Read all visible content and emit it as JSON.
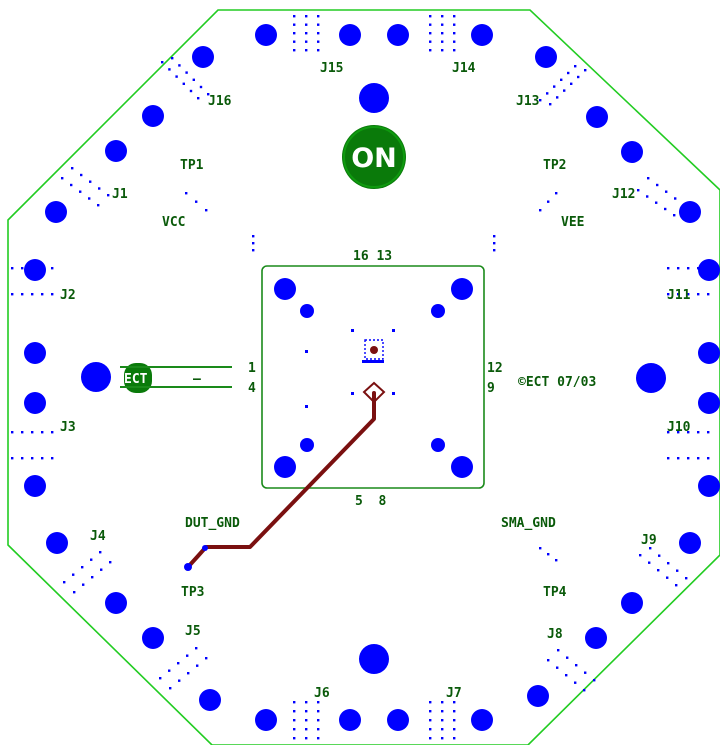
{
  "board": {
    "logo_text": "ON",
    "connectors": {
      "j1": "J1",
      "j2": "J2",
      "j3": "J3",
      "j4": "J4",
      "j5": "J5",
      "j6": "J6",
      "j7": "J7",
      "j8": "J8",
      "j9": "J9",
      "j10": "J10",
      "j11": "J11",
      "j12": "J12",
      "j13": "J13",
      "j14": "J14",
      "j15": "J15",
      "j16": "J16"
    },
    "test_points": {
      "tp1": "TP1",
      "tp2": "TP2",
      "tp3": "TP3",
      "tp4": "TP4"
    },
    "nets": {
      "vcc": "VCC",
      "vee": "VEE",
      "dut_gnd": "DUT_GND",
      "sma_gnd": "SMA_GND"
    },
    "socket_pins": {
      "top": "16 13",
      "bottom": "5  8",
      "left_top": "1",
      "left_bottom": "4",
      "right_top": "12",
      "right_bottom": "9"
    },
    "copyright": "©ECT 07/03",
    "ect_logo": "ECT",
    "dash": "–",
    "colors": {
      "outline": "#22cc22",
      "pad": "#0000ff",
      "trace": "#7a1010",
      "logo": "#0a7a0a",
      "label": "#0a5a0a"
    }
  }
}
